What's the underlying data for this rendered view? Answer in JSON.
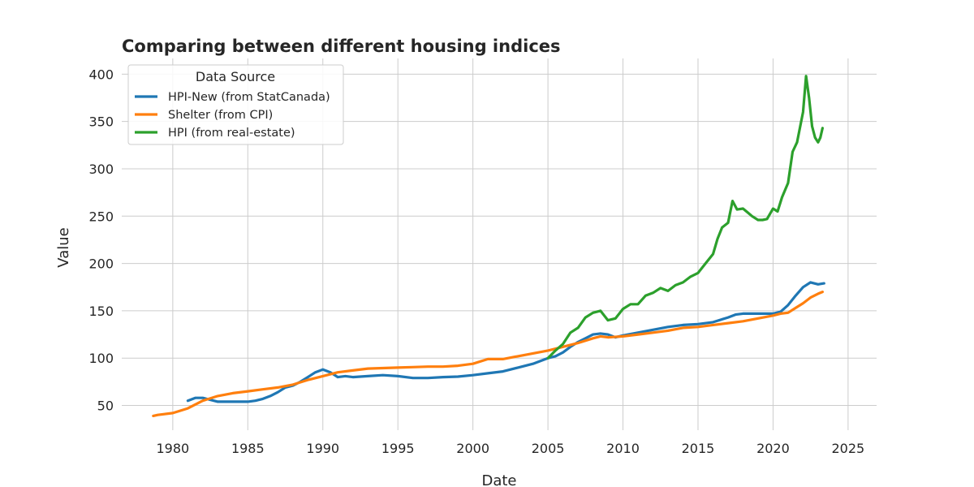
{
  "chart_data": {
    "type": "line",
    "title": "Comparing between different housing indices",
    "xlabel": "Date",
    "ylabel": "Value",
    "xlim": [
      1976.6,
      2026.9
    ],
    "ylim": [
      23.9,
      416.6
    ],
    "xticks": [
      "1980",
      "1985",
      "1990",
      "1995",
      "2000",
      "2005",
      "2010",
      "2015",
      "2020",
      "2025"
    ],
    "yticks": [
      "50",
      "100",
      "150",
      "200",
      "250",
      "300",
      "350",
      "400"
    ],
    "grid": true,
    "legend": {
      "title": "Data Source",
      "placement": "top-left"
    },
    "series": [
      {
        "name": "HPI-New (from StatCanada)",
        "color": "#1f77b4",
        "x": [
          1981.0,
          1981.5,
          1982.0,
          1982.5,
          1983.0,
          1983.5,
          1984.0,
          1984.5,
          1985.0,
          1985.5,
          1986.0,
          1986.5,
          1987.0,
          1987.5,
          1988.0,
          1988.5,
          1989.0,
          1989.5,
          1990.0,
          1990.5,
          1991.0,
          1991.5,
          1992.0,
          1993.0,
          1994.0,
          1995.0,
          1996.0,
          1997.0,
          1998.0,
          1999.0,
          2000.0,
          2001.0,
          2002.0,
          2003.0,
          2004.0,
          2005.0,
          2005.5,
          2006.0,
          2006.5,
          2007.0,
          2007.5,
          2008.0,
          2008.5,
          2009.0,
          2009.5,
          2010.0,
          2011.0,
          2012.0,
          2013.0,
          2014.0,
          2015.0,
          2016.0,
          2017.0,
          2017.5,
          2018.0,
          2019.0,
          2020.0,
          2020.5,
          2021.0,
          2021.5,
          2022.0,
          2022.5,
          2023.0,
          2023.4
        ],
        "values": [
          55,
          58,
          58,
          56,
          54,
          54,
          54,
          54,
          54,
          55,
          57,
          60,
          64,
          69,
          71,
          75,
          80,
          85,
          88,
          85,
          80,
          81,
          80,
          81,
          82,
          81,
          79,
          79,
          80,
          80.5,
          82,
          84,
          86,
          90,
          94,
          100,
          102,
          106,
          112,
          117,
          121,
          125,
          126,
          125,
          122,
          124,
          127,
          130,
          133,
          135,
          136,
          138,
          143,
          146,
          147,
          147,
          147,
          149,
          156,
          166,
          175,
          180,
          178,
          179
        ]
      },
      {
        "name": "Shelter (from CPI)",
        "color": "#ff7f0e",
        "x": [
          1978.7,
          1979.0,
          1980.0,
          1981.0,
          1982.0,
          1983.0,
          1984.0,
          1985.0,
          1986.0,
          1987.0,
          1988.0,
          1989.0,
          1990.0,
          1991.0,
          1992.0,
          1993.0,
          1994.0,
          1995.0,
          1996.0,
          1997.0,
          1998.0,
          1999.0,
          2000.0,
          2001.0,
          2002.0,
          2003.0,
          2004.0,
          2005.0,
          2006.0,
          2007.0,
          2008.0,
          2008.5,
          2009.0,
          2010.0,
          2011.0,
          2012.0,
          2013.0,
          2014.0,
          2015.0,
          2016.0,
          2017.0,
          2018.0,
          2019.0,
          2020.0,
          2020.5,
          2021.0,
          2021.5,
          2022.0,
          2022.5,
          2023.0,
          2023.3
        ],
        "values": [
          39,
          40,
          42,
          47,
          55,
          60,
          63,
          65,
          67,
          69,
          72,
          77,
          81,
          85,
          87,
          89,
          89.5,
          90,
          90.5,
          91,
          91,
          92,
          94,
          99,
          99,
          102,
          105,
          108,
          112,
          116,
          121,
          123,
          122,
          123,
          125,
          127,
          129,
          132,
          133,
          135,
          137,
          139,
          142,
          145,
          147,
          148,
          153,
          158,
          164,
          168,
          170
        ]
      },
      {
        "name": "HPI (from real-estate)",
        "color": "#2ca02c",
        "x": [
          2005.0,
          2005.5,
          2006.0,
          2006.5,
          2007.0,
          2007.5,
          2008.0,
          2008.5,
          2009.0,
          2009.5,
          2010.0,
          2010.5,
          2011.0,
          2011.5,
          2012.0,
          2012.5,
          2013.0,
          2013.5,
          2014.0,
          2014.5,
          2015.0,
          2015.5,
          2016.0,
          2016.3,
          2016.6,
          2017.0,
          2017.3,
          2017.6,
          2018.0,
          2018.3,
          2018.6,
          2019.0,
          2019.3,
          2019.6,
          2020.0,
          2020.3,
          2020.6,
          2021.0,
          2021.3,
          2021.6,
          2022.0,
          2022.2,
          2022.4,
          2022.6,
          2022.8,
          2023.0,
          2023.15,
          2023.3
        ],
        "values": [
          100,
          108,
          115,
          127,
          132,
          143,
          148,
          150,
          140,
          142,
          152,
          157,
          157,
          166,
          169,
          174,
          171,
          177,
          180,
          186,
          190,
          200,
          210,
          226,
          238,
          243,
          266,
          257,
          258,
          254,
          250,
          246,
          246,
          247,
          258,
          255,
          270,
          285,
          318,
          328,
          360,
          398,
          375,
          345,
          333,
          328,
          333,
          343
        ]
      }
    ]
  }
}
